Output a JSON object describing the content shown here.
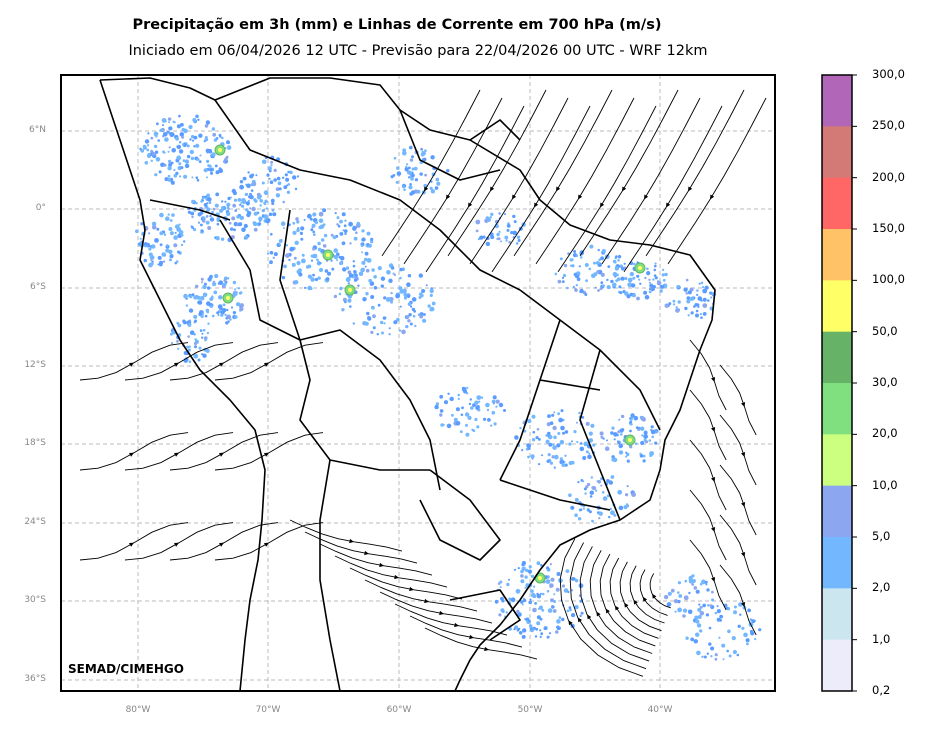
{
  "title": "Precipitação em 3h (mm) e Linhas de Corrente em 700 hPa (m/s)",
  "subtitle": "Iniciado em 06/04/2026 12 UTC - Previsão para 22/04/2026 00 UTC - WRF 12km",
  "credit": "SEMAD/CIMEHGO",
  "lat_labels": [
    "6°N",
    "0°",
    "6°S",
    "12°S",
    "18°S",
    "24°S",
    "30°S",
    "36°S"
  ],
  "lon_labels": [
    "80°W",
    "70°W",
    "60°W",
    "50°W",
    "40°W"
  ],
  "colorbar": {
    "labels": [
      "300,0",
      "250,0",
      "200,0",
      "150,0",
      "100,0",
      "50,0",
      "30,0",
      "20,0",
      "10,0",
      "5,0",
      "2,0",
      "1,0",
      "0,2"
    ],
    "colors": [
      "#b266b8",
      "#d47a76",
      "#ff6666",
      "#ffc266",
      "#ffff66",
      "#66b266",
      "#80e080",
      "#ccff80",
      "#8ca6f0",
      "#73b8ff",
      "#cce6f0",
      "#ececfa"
    ]
  }
}
